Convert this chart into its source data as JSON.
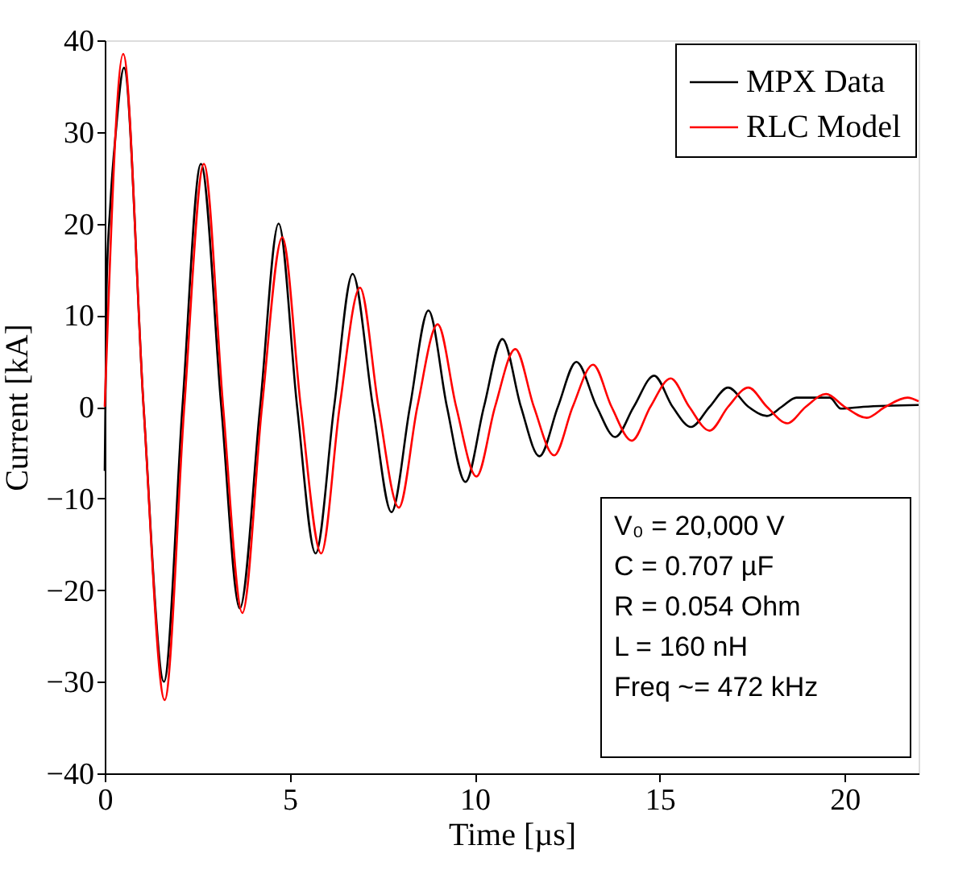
{
  "chart_data": {
    "type": "line",
    "xlabel": "Time [µs]",
    "ylabel": "Current [kA]",
    "xlim": [
      0,
      22
    ],
    "xticks": [
      0,
      5,
      10,
      15,
      20
    ],
    "ylim": [
      -40,
      40
    ],
    "yticks": [
      -40,
      -30,
      -20,
      -10,
      0,
      10,
      20,
      30,
      40
    ],
    "grid": false,
    "legend": "top right",
    "line_style": "solid",
    "marker": "none",
    "series": [
      {
        "name": "MPX Data",
        "color": "#000000",
        "x": [
          0,
          0.05,
          0.15,
          0.3,
          0.52,
          1.05,
          1.6,
          2.1,
          2.6,
          3.15,
          3.65,
          4.2,
          4.7,
          5.2,
          5.7,
          6.2,
          6.7,
          7.25,
          7.75,
          8.25,
          8.75,
          9.25,
          9.75,
          10.25,
          10.75,
          11.25,
          11.75,
          12.25,
          12.75,
          13.3,
          13.8,
          14.3,
          14.85,
          15.35,
          15.85,
          16.35,
          16.85,
          17.4,
          17.9,
          18.3,
          18.7,
          19.6,
          19.9,
          20.5,
          22
        ],
        "values": [
          -7,
          13,
          22,
          30,
          37,
          0,
          -30,
          0,
          26.5,
          0,
          -22,
          0,
          20,
          0,
          -16,
          0,
          14.5,
          0,
          -11.5,
          0,
          10.5,
          0,
          -8.2,
          0,
          7.4,
          0,
          -5.4,
          0,
          4.9,
          0,
          -3.3,
          0,
          3.4,
          0,
          -2.2,
          0,
          2.1,
          0,
          -1,
          0,
          1,
          1,
          -0.2,
          0,
          0.2
        ]
      },
      {
        "name": "RLC Model",
        "color": "#ff0000",
        "x": [
          0,
          0.5,
          1.05,
          1.62,
          2.15,
          2.68,
          3.2,
          3.72,
          4.25,
          4.8,
          5.3,
          5.85,
          6.35,
          6.9,
          7.4,
          7.95,
          8.45,
          9.0,
          9.5,
          10.05,
          10.55,
          11.1,
          11.6,
          12.15,
          12.65,
          13.2,
          13.7,
          14.25,
          14.75,
          15.3,
          15.8,
          16.35,
          16.85,
          17.4,
          17.9,
          18.45,
          18.95,
          19.5,
          20.0,
          20.6,
          21.1,
          21.7,
          22
        ],
        "values": [
          0,
          38.5,
          0,
          -32,
          0,
          26.5,
          0,
          -22.5,
          0,
          18.5,
          0,
          -16,
          0,
          13,
          0,
          -11,
          0,
          9,
          0,
          -7.6,
          0,
          6.3,
          0,
          -5.3,
          0,
          4.6,
          0,
          -3.7,
          0,
          3.1,
          0,
          -2.6,
          0,
          2.1,
          0,
          -1.8,
          0,
          1.4,
          0,
          -1.2,
          0,
          1.0,
          0.6
        ]
      }
    ],
    "annotations": [
      "V₀ = 20,000 V",
      "C = 0.707 µF",
      "R = 0.054 Ohm",
      "L = 160 nH",
      "Freq ~= 472 kHz"
    ]
  }
}
